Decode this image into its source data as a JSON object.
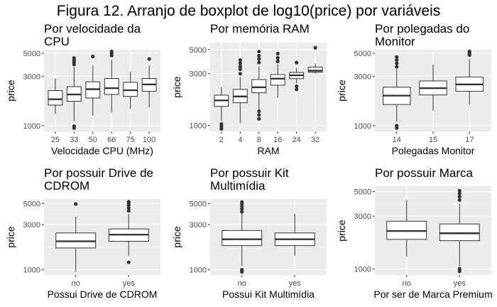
{
  "figure_title": "Figura 12. Arranjo de boxplot de log10(price) por variáveis",
  "chart_data": [
    {
      "type": "boxplot",
      "title": [
        "Por velocidade da",
        "CPU"
      ],
      "xlabel": "Velocidade CPU (MHz)",
      "ylabel": "price",
      "y_scale": "log10",
      "ylim": [
        880,
        5400
      ],
      "y_ticks": [
        1000,
        3000,
        5000
      ],
      "categories": [
        "25",
        "33",
        "50",
        "66",
        "75",
        "100"
      ],
      "boxes": [
        {
          "whisker_low": 1300,
          "q1": 1580,
          "median": 1800,
          "q3": 2180,
          "whisker_high": 2850,
          "outliers": []
        },
        {
          "whisker_low": 1100,
          "q1": 1720,
          "median": 2000,
          "q3": 2380,
          "whisker_high": 3700,
          "outliers": [
            950,
            990,
            3900,
            4100,
            4300,
            4500
          ]
        },
        {
          "whisker_low": 1250,
          "q1": 1850,
          "median": 2250,
          "q3": 2650,
          "whisker_high": 3800,
          "outliers": [
            4650
          ]
        },
        {
          "whisker_low": 1350,
          "q1": 2000,
          "median": 2300,
          "q3": 2850,
          "whisker_high": 4300,
          "outliers": [
            4750,
            5000,
            5200
          ]
        },
        {
          "whisker_low": 1450,
          "q1": 1920,
          "median": 2200,
          "q3": 2620,
          "whisker_high": 3300,
          "outliers": []
        },
        {
          "whisker_low": 1500,
          "q1": 2150,
          "median": 2500,
          "q3": 2850,
          "whisker_high": 3800,
          "outliers": [
            4400
          ]
        }
      ]
    },
    {
      "type": "boxplot",
      "title": [
        "Por memória RAM"
      ],
      "xlabel": "RAM",
      "ylabel": "price",
      "y_scale": "log10",
      "ylim": [
        880,
        5800
      ],
      "y_ticks": [
        1000,
        3000,
        5000
      ],
      "categories": [
        "2",
        "4",
        "8",
        "16",
        "24",
        "32"
      ],
      "boxes": [
        {
          "whisker_low": 1100,
          "q1": 1500,
          "median": 1700,
          "q3": 1900,
          "whisker_high": 2250,
          "outliers": [
            930,
            980,
            1030
          ]
        },
        {
          "whisker_low": 1050,
          "q1": 1620,
          "median": 1850,
          "q3": 2150,
          "whisker_high": 2800,
          "outliers": [
            3000,
            3300,
            3500,
            3750,
            4000
          ]
        },
        {
          "whisker_low": 1400,
          "q1": 2000,
          "median": 2250,
          "q3": 2650,
          "whisker_high": 3500,
          "outliers": [
            1150,
            1250,
            1350,
            3800,
            4100,
            4400,
            4800
          ]
        },
        {
          "whisker_low": 1800,
          "q1": 2350,
          "median": 2700,
          "q3": 2950,
          "whisker_high": 3700,
          "outliers": [
            3900,
            4200,
            4600
          ]
        },
        {
          "whisker_low": 2450,
          "q1": 2700,
          "median": 2900,
          "q3": 3080,
          "whisker_high": 3400,
          "outliers": [
            2150,
            2300,
            3800
          ]
        },
        {
          "whisker_low": 3000,
          "q1": 3100,
          "median": 3200,
          "q3": 3450,
          "whisker_high": 3700,
          "outliers": [
            5200
          ]
        }
      ]
    },
    {
      "type": "boxplot",
      "title": [
        "Por polegadas do",
        "Monitor"
      ],
      "xlabel": "Polegadas Monitor",
      "ylabel": "price",
      "y_scale": "log10",
      "ylim": [
        880,
        5400
      ],
      "y_ticks": [
        1000,
        3000,
        5000
      ],
      "categories": [
        "14",
        "15",
        "17"
      ],
      "boxes": [
        {
          "whisker_low": 1100,
          "q1": 1600,
          "median": 1950,
          "q3": 2350,
          "whisker_high": 3500,
          "outliers": [
            950,
            1000,
            3700,
            4000,
            4300,
            4600
          ]
        },
        {
          "whisker_low": 1400,
          "q1": 1980,
          "median": 2300,
          "q3": 2700,
          "whisker_high": 3900,
          "outliers": []
        },
        {
          "whisker_low": 1600,
          "q1": 2150,
          "median": 2500,
          "q3": 2950,
          "whisker_high": 4400,
          "outliers": [
            4800,
            5000,
            5200
          ]
        }
      ]
    },
    {
      "type": "boxplot",
      "title": [
        "Por possuir Drive de",
        "CDROM"
      ],
      "xlabel": "Possui Drive de CDROM",
      "ylabel": "price",
      "y_scale": "log10",
      "ylim": [
        880,
        5600
      ],
      "y_ticks": [
        1000,
        3000,
        5000
      ],
      "categories": [
        "no",
        "yes"
      ],
      "boxes": [
        {
          "whisker_low": 950,
          "q1": 1700,
          "median": 2000,
          "q3": 2450,
          "whisker_high": 3650,
          "outliers": [
            4950
          ]
        },
        {
          "whisker_low": 1400,
          "q1": 2000,
          "median": 2350,
          "q3": 2700,
          "whisker_high": 3900,
          "outliers": [
            1200,
            4200,
            4500,
            4800,
            5050,
            5250
          ]
        }
      ]
    },
    {
      "type": "boxplot",
      "title": [
        "Por possuir Kit",
        "Multimídia"
      ],
      "xlabel": "Possui Kit Multimídia",
      "ylabel": "price",
      "y_scale": "log10",
      "ylim": [
        880,
        5600
      ],
      "y_ticks": [
        1000,
        3000,
        5000
      ],
      "categories": [
        "no",
        "yes"
      ],
      "boxes": [
        {
          "whisker_low": 1100,
          "q1": 1800,
          "median": 2100,
          "q3": 2600,
          "whisker_high": 3900,
          "outliers": [
            950,
            1000,
            4100,
            4400,
            4700,
            5000,
            5200
          ]
        },
        {
          "whisker_low": 1400,
          "q1": 1800,
          "median": 2100,
          "q3": 2450,
          "whisker_high": 3900,
          "outliers": []
        }
      ]
    },
    {
      "type": "boxplot",
      "title": [
        "Por possuir Marca"
      ],
      "xlabel": "Por ser de Marca Premium",
      "ylabel": "price",
      "y_scale": "log10",
      "ylim": [
        880,
        5600
      ],
      "y_ticks": [
        1000,
        3000,
        5000
      ],
      "categories": [
        "no",
        "yes"
      ],
      "boxes": [
        {
          "whisker_low": 1300,
          "q1": 1850,
          "median": 2200,
          "q3": 2700,
          "whisker_high": 4200,
          "outliers": []
        },
        {
          "whisker_low": 1050,
          "q1": 1800,
          "median": 2100,
          "q3": 2550,
          "whisker_high": 3900,
          "outliers": [
            950,
            1000,
            4200,
            4500,
            4800,
            5100
          ]
        }
      ]
    }
  ]
}
